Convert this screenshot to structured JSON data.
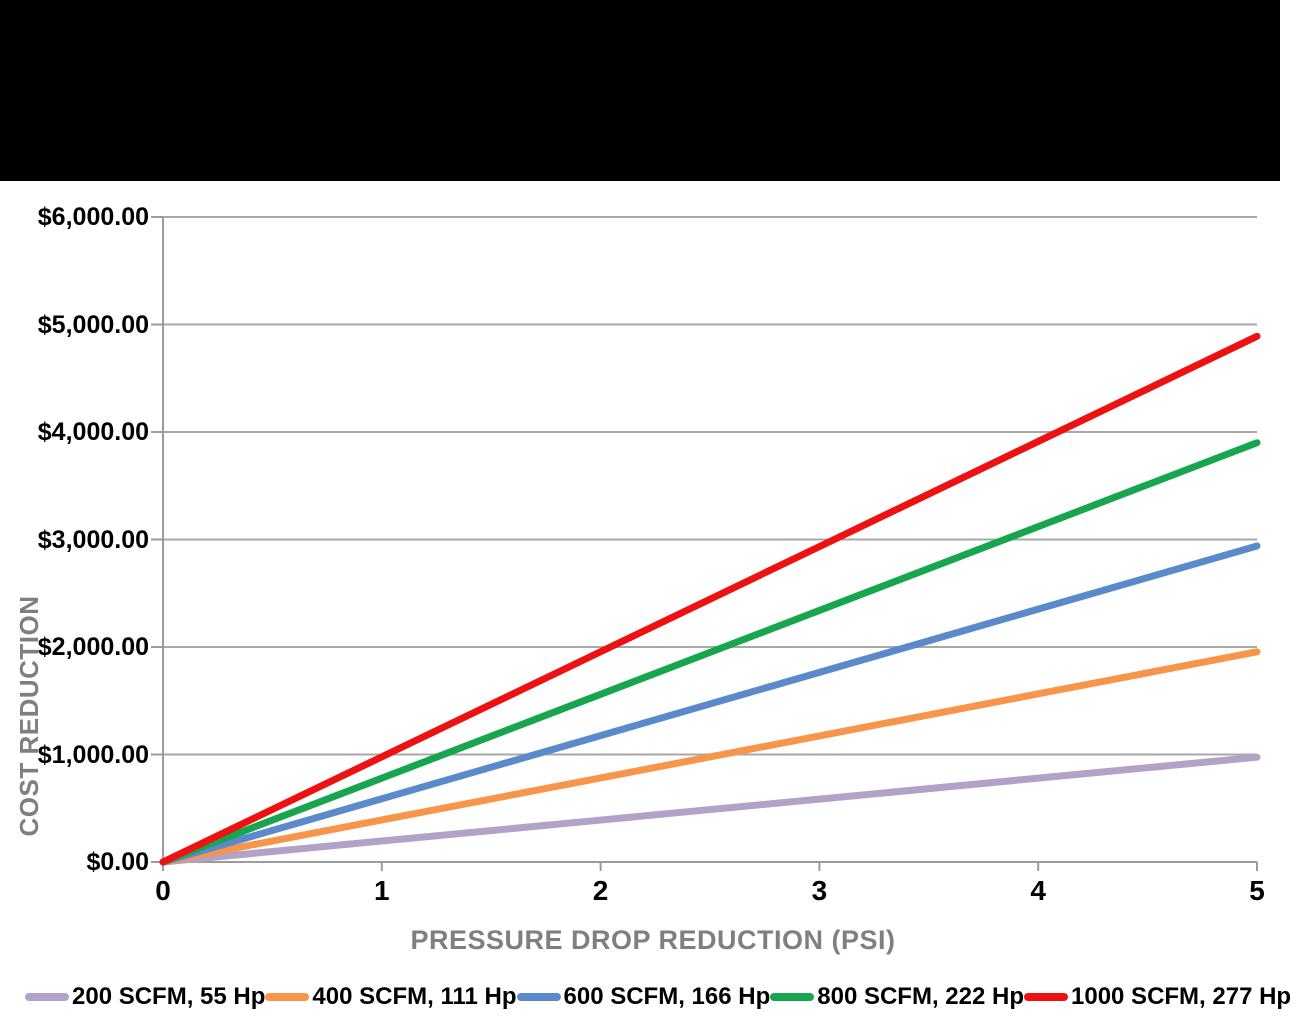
{
  "page": {
    "top_bar_color": "#000000",
    "background_color": "#ffffff"
  },
  "chart_data": {
    "type": "line",
    "title": "",
    "xlabel": "PRESSURE DROP REDUCTION (PSI)",
    "ylabel": "COST REDUCTION",
    "x": [
      0,
      1,
      2,
      3,
      4,
      5
    ],
    "x_tick_labels": [
      "0",
      "1",
      "2",
      "3",
      "4",
      "5"
    ],
    "xlim": [
      0,
      5
    ],
    "y_ticks": [
      0,
      1000,
      2000,
      3000,
      4000,
      5000,
      6000
    ],
    "y_tick_labels": [
      "$0.00",
      "$1,000.00",
      "$2,000.00",
      "$3,000.00",
      "$4,000.00",
      "$5,000.00",
      "$6,000.00"
    ],
    "ylim": [
      0,
      6000
    ],
    "grid": "horizontal",
    "legend_position": "bottom",
    "axis_color": "#9b9b9b",
    "grid_color": "#a8a8a8",
    "tick_label_color": "#000000",
    "axis_title_color": "#7f7f7f",
    "series": [
      {
        "name": "200 SCFM, 55 Hp",
        "color": "#b3a2c7",
        "values": [
          0,
          195,
          390,
          585,
          780,
          975
        ]
      },
      {
        "name": "400 SCFM, 111 Hp",
        "color": "#f7964a",
        "values": [
          0,
          391,
          782,
          1173,
          1564,
          1955
        ]
      },
      {
        "name": "600 SCFM, 166 Hp",
        "color": "#5b8acc",
        "values": [
          0,
          588,
          1176,
          1764,
          2352,
          2940
        ]
      },
      {
        "name": "800 SCFM, 222 Hp",
        "color": "#17a64e",
        "values": [
          0,
          780,
          1560,
          2340,
          3120,
          3900
        ]
      },
      {
        "name": "1000 SCFM, 277 Hp",
        "color": "#ee1111",
        "values": [
          0,
          978,
          1956,
          2934,
          3912,
          4890
        ]
      }
    ]
  }
}
